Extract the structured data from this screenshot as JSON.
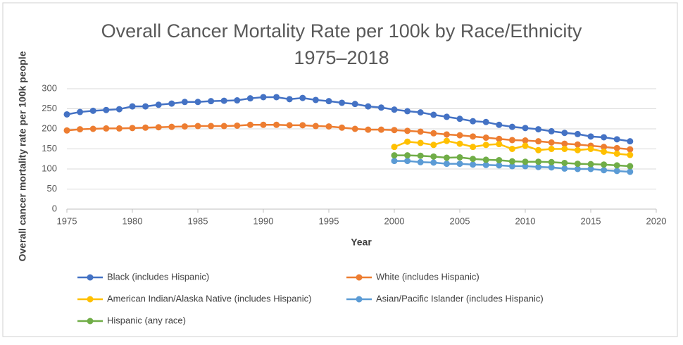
{
  "chart_data": {
    "type": "line",
    "title": [
      "Overall Cancer Mortality Rate per 100k by Race/Ethnicity",
      "1975–2018"
    ],
    "x_label": "Year",
    "y_label": "Overall cancer mortality rate per 100k people",
    "x": [
      1975,
      1976,
      1977,
      1978,
      1979,
      1980,
      1981,
      1982,
      1983,
      1984,
      1985,
      1986,
      1987,
      1988,
      1989,
      1990,
      1991,
      1992,
      1993,
      1994,
      1995,
      1996,
      1997,
      1998,
      1999,
      2000,
      2001,
      2002,
      2003,
      2004,
      2005,
      2006,
      2007,
      2008,
      2009,
      2010,
      2011,
      2012,
      2013,
      2014,
      2015,
      2016,
      2017,
      2018
    ],
    "series": [
      {
        "name": "Black (includes Hispanic)",
        "color": "#4472c4",
        "values": [
          236,
          242,
          245,
          247,
          249,
          256,
          256,
          260,
          263,
          267,
          267,
          269,
          270,
          271,
          276,
          279,
          279,
          274,
          277,
          272,
          269,
          265,
          262,
          256,
          253,
          248,
          244,
          241,
          235,
          230,
          225,
          219,
          217,
          210,
          205,
          202,
          199,
          194,
          190,
          187,
          181,
          179,
          174,
          169
        ]
      },
      {
        "name": "White (includes Hispanic)",
        "color": "#ed7d31",
        "values": [
          196,
          199,
          200,
          201,
          201,
          202,
          203,
          204,
          205,
          206,
          207,
          207,
          207,
          208,
          210,
          210,
          210,
          209,
          209,
          207,
          206,
          203,
          200,
          198,
          198,
          197,
          195,
          193,
          189,
          186,
          184,
          181,
          178,
          175,
          172,
          171,
          169,
          166,
          163,
          161,
          158,
          155,
          152,
          149
        ]
      },
      {
        "name": "American Indian/Alaska Native (includes Hispanic)",
        "color": "#ffc000",
        "values": [
          null,
          null,
          null,
          null,
          null,
          null,
          null,
          null,
          null,
          null,
          null,
          null,
          null,
          null,
          null,
          null,
          null,
          null,
          null,
          null,
          null,
          null,
          null,
          null,
          null,
          155,
          168,
          165,
          160,
          170,
          163,
          155,
          160,
          162,
          150,
          158,
          147,
          150,
          150,
          147,
          150,
          143,
          138,
          135
        ]
      },
      {
        "name": "Asian/Pacific Islander (includes Hispanic)",
        "color": "#5b9bd5",
        "values": [
          null,
          null,
          null,
          null,
          null,
          null,
          null,
          null,
          null,
          null,
          null,
          null,
          null,
          null,
          null,
          null,
          null,
          null,
          null,
          null,
          null,
          null,
          null,
          null,
          null,
          120,
          120,
          117,
          116,
          113,
          113,
          111,
          110,
          109,
          107,
          107,
          105,
          104,
          101,
          100,
          100,
          97,
          95,
          93
        ]
      },
      {
        "name": "Hispanic (any race)",
        "color": "#70ad47",
        "values": [
          null,
          null,
          null,
          null,
          null,
          null,
          null,
          null,
          null,
          null,
          null,
          null,
          null,
          null,
          null,
          null,
          null,
          null,
          null,
          null,
          null,
          null,
          null,
          null,
          null,
          134,
          134,
          133,
          131,
          128,
          129,
          125,
          123,
          122,
          119,
          118,
          118,
          117,
          115,
          113,
          112,
          111,
          109,
          107
        ]
      }
    ],
    "xlim": [
      1975,
      2020
    ],
    "xticks": [
      1975,
      1980,
      1985,
      1990,
      1995,
      2000,
      2005,
      2010,
      2015,
      2020
    ],
    "ylim": [
      0,
      300
    ],
    "yticks": [
      0,
      50,
      100,
      150,
      200,
      250,
      300
    ],
    "grid": true,
    "legend": "bottom"
  }
}
